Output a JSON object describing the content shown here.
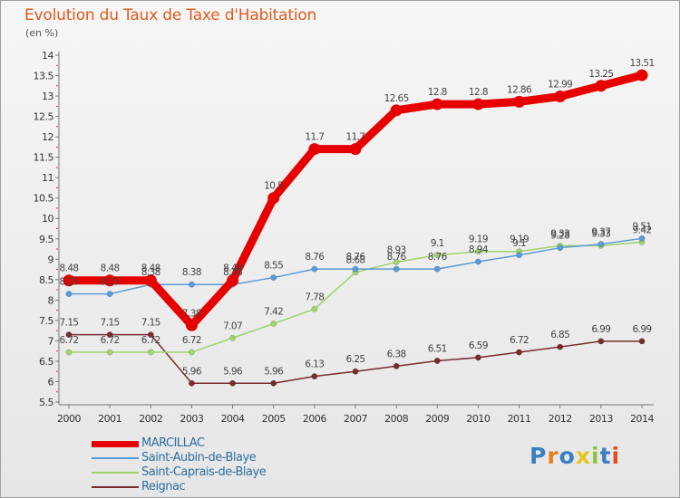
{
  "title": "Evolution du Taux de Taxe d'Habitation",
  "subtitle": "(en %)",
  "logo": {
    "text": "Proxiti",
    "colors": [
      "#3a7fc1",
      "#e8801c",
      "#3a7fc1",
      "#e8c41c",
      "#8cc63f",
      "#3a7fc1",
      "#e84c1c"
    ]
  },
  "chart_data": {
    "type": "line",
    "x": [
      2000,
      2001,
      2002,
      2003,
      2004,
      2005,
      2006,
      2007,
      2008,
      2009,
      2010,
      2011,
      2012,
      2013,
      2014
    ],
    "ylim": [
      5.5,
      14
    ],
    "yticks": [
      "5.5",
      "6",
      "6.5",
      "7",
      "7.5",
      "8",
      "8.5",
      "9",
      "9.5",
      "10",
      "10.5",
      "11",
      "11.5",
      "12",
      "12.5",
      "13",
      "13.5",
      "14"
    ],
    "grid": false,
    "legend_position": "bottom-left",
    "series": [
      {
        "name": "MARCILLAC",
        "color": "#e60000",
        "emphasis": true,
        "values": [
          8.48,
          8.48,
          8.48,
          7.38,
          8.48,
          10.5,
          11.7,
          11.7,
          12.65,
          12.8,
          12.8,
          12.86,
          12.99,
          13.25,
          13.51
        ],
        "labels": [
          "8.48",
          "8.48",
          "8.48",
          "7.38",
          "8.48",
          "10.5",
          "11.7",
          "11.7",
          "12.65",
          "12.8",
          "12.8",
          "12.86",
          "12.99",
          "13.25",
          "13.51"
        ]
      },
      {
        "name": "Saint-Aubin-de-Blaye",
        "color": "#5b9bd5",
        "emphasis": false,
        "values": [
          8.15,
          8.15,
          8.38,
          8.38,
          8.38,
          8.55,
          8.76,
          8.76,
          8.76,
          8.76,
          8.94,
          9.1,
          9.28,
          9.37,
          9.51
        ],
        "labels": [
          "8.15",
          "8.15",
          "8.38",
          "8.38",
          "8.38",
          "8.55",
          "8.76",
          "8.76",
          "8.76",
          "8.76",
          "8.94",
          "9.1",
          "9.28",
          "9.37",
          "9.51"
        ]
      },
      {
        "name": "Saint-Caprais-de-Blaye",
        "color": "#9fd46a",
        "emphasis": false,
        "values": [
          6.72,
          6.72,
          6.72,
          6.72,
          7.07,
          7.42,
          7.78,
          8.68,
          8.93,
          9.1,
          9.19,
          9.19,
          9.33,
          9.33,
          9.42
        ],
        "labels": [
          "6.72",
          "6.72",
          "6.72",
          "6.72",
          "7.07",
          "7.42",
          "7.78",
          "8.68",
          "8.93",
          "9.1",
          "9.19",
          "9.19",
          "9.33",
          "9.33",
          "9.42"
        ]
      },
      {
        "name": "Reignac",
        "color": "#7a2c2c",
        "emphasis": false,
        "values": [
          7.15,
          7.15,
          7.15,
          5.96,
          5.96,
          5.96,
          6.13,
          6.25,
          6.38,
          6.51,
          6.59,
          6.72,
          6.85,
          6.99,
          6.99
        ],
        "labels": [
          "7.15",
          "7.15",
          "7.15",
          "5.96",
          "5.96",
          "5.96",
          "6.13",
          "6.25",
          "6.38",
          "6.51",
          "6.59",
          "6.72",
          "6.85",
          "6.99",
          "6.99"
        ]
      }
    ]
  }
}
